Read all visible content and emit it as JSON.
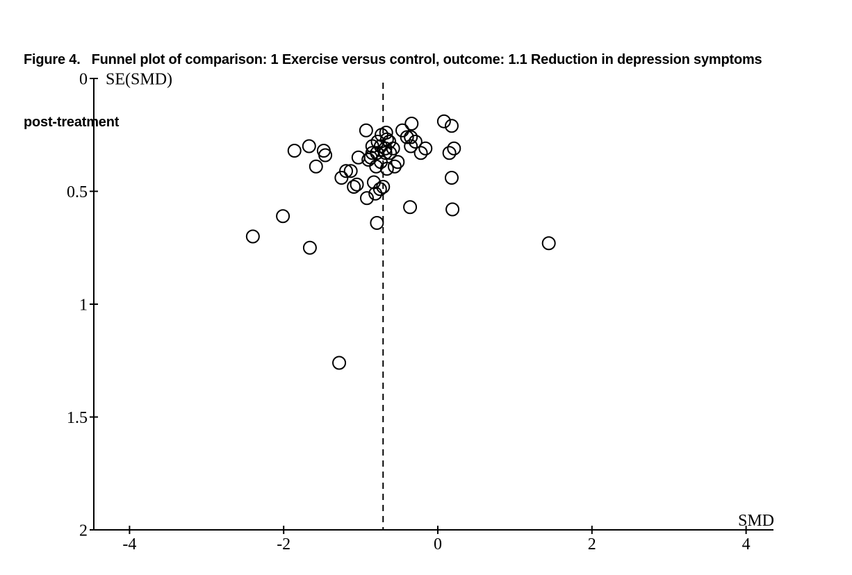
{
  "figure": {
    "title_line1": "Figure 4.   Funnel plot of comparison: 1 Exercise versus control, outcome: 1.1 Reduction in depression symptoms",
    "title_line2": "post-treatment"
  },
  "chart_data": {
    "type": "scatter",
    "title": "Figure 4. Funnel plot of comparison: 1 Exercise versus control, outcome: 1.1 Reduction in depression symptoms post-treatment",
    "xlabel": "SMD",
    "ylabel": "SE(SMD)",
    "marker": "open-circle",
    "grid": false,
    "legend": "none",
    "xlim": [
      -4.45,
      4.35
    ],
    "ylim": [
      0,
      2
    ],
    "y_axis_inverted": true,
    "x_ticks": [
      -4,
      -2,
      0,
      2,
      4
    ],
    "x_tick_labels": [
      "-4",
      "-2",
      "0",
      "2",
      "4"
    ],
    "y_ticks": [
      0,
      0.5,
      1,
      1.5,
      2
    ],
    "y_tick_labels": [
      "0",
      "0.5",
      "1",
      "1.5",
      "2"
    ],
    "pooled_effect_line_x": -0.71,
    "pooled_effect_line_style": "dashed",
    "colors": {
      "background": "#ffffff",
      "marker_stroke": "#000000",
      "axis": "#000000",
      "text": "#000000"
    },
    "points_format": [
      "SMD",
      "SE(SMD)"
    ],
    "points": [
      [
        -2.4,
        0.7
      ],
      [
        -2.01,
        0.61
      ],
      [
        -1.86,
        0.32
      ],
      [
        -1.67,
        0.3
      ],
      [
        -1.66,
        0.75
      ],
      [
        -1.58,
        0.39
      ],
      [
        -1.48,
        0.32
      ],
      [
        -1.46,
        0.34
      ],
      [
        -1.28,
        1.26
      ],
      [
        -1.25,
        0.44
      ],
      [
        -1.19,
        0.41
      ],
      [
        -1.13,
        0.41
      ],
      [
        -1.09,
        0.48
      ],
      [
        -1.05,
        0.47
      ],
      [
        -1.03,
        0.35
      ],
      [
        -0.93,
        0.23
      ],
      [
        -0.92,
        0.53
      ],
      [
        -0.9,
        0.36
      ],
      [
        -0.87,
        0.35
      ],
      [
        -0.85,
        0.3
      ],
      [
        -0.85,
        0.33
      ],
      [
        -0.83,
        0.46
      ],
      [
        -0.81,
        0.51
      ],
      [
        -0.8,
        0.39
      ],
      [
        -0.79,
        0.33
      ],
      [
        -0.79,
        0.64
      ],
      [
        -0.78,
        0.28
      ],
      [
        -0.75,
        0.49
      ],
      [
        -0.74,
        0.3
      ],
      [
        -0.74,
        0.37
      ],
      [
        -0.73,
        0.25
      ],
      [
        -0.71,
        0.48
      ],
      [
        -0.68,
        0.31
      ],
      [
        -0.68,
        0.33
      ],
      [
        -0.67,
        0.24
      ],
      [
        -0.66,
        0.27
      ],
      [
        -0.66,
        0.4
      ],
      [
        -0.63,
        0.28
      ],
      [
        -0.62,
        0.33
      ],
      [
        -0.58,
        0.31
      ],
      [
        -0.56,
        0.39
      ],
      [
        -0.52,
        0.37
      ],
      [
        -0.46,
        0.23
      ],
      [
        -0.4,
        0.26
      ],
      [
        -0.35,
        0.26
      ],
      [
        -0.34,
        0.2
      ],
      [
        -0.35,
        0.3
      ],
      [
        -0.29,
        0.28
      ],
      [
        -0.36,
        0.57
      ],
      [
        -0.22,
        0.33
      ],
      [
        -0.16,
        0.31
      ],
      [
        0.08,
        0.19
      ],
      [
        0.18,
        0.21
      ],
      [
        0.15,
        0.33
      ],
      [
        0.21,
        0.31
      ],
      [
        0.18,
        0.44
      ],
      [
        0.19,
        0.58
      ],
      [
        1.44,
        0.73
      ]
    ]
  }
}
